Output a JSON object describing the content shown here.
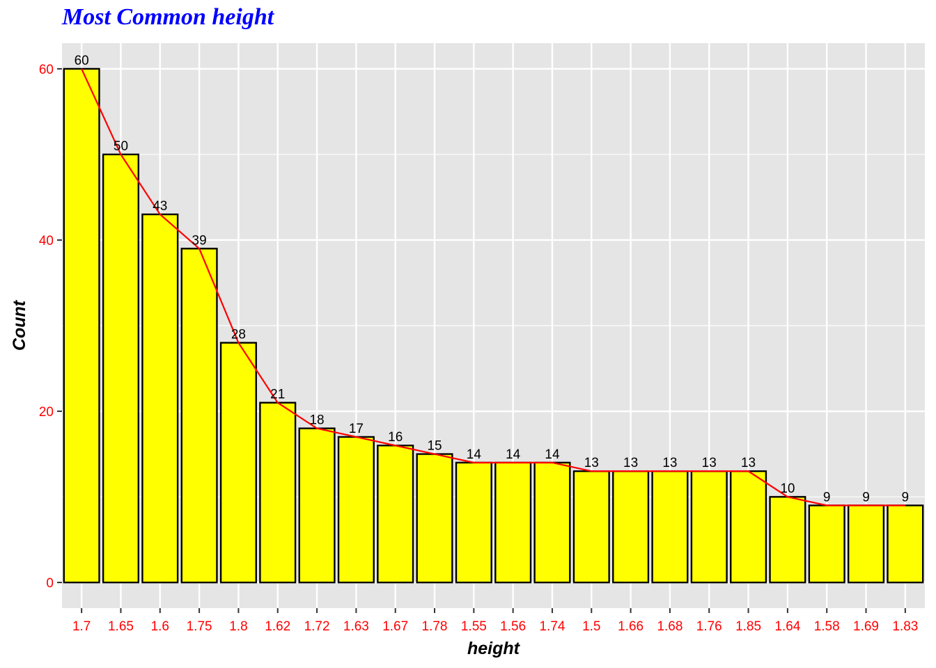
{
  "chart_data": {
    "type": "bar",
    "title": "Most Common height",
    "xlabel": "height",
    "ylabel": "Count",
    "categories": [
      "1.7",
      "1.65",
      "1.6",
      "1.75",
      "1.8",
      "1.62",
      "1.72",
      "1.63",
      "1.67",
      "1.78",
      "1.55",
      "1.56",
      "1.74",
      "1.5",
      "1.66",
      "1.68",
      "1.76",
      "1.85",
      "1.64",
      "1.58",
      "1.69",
      "1.83"
    ],
    "values": [
      60,
      50,
      43,
      39,
      28,
      21,
      18,
      17,
      16,
      15,
      14,
      14,
      14,
      13,
      13,
      13,
      13,
      13,
      10,
      9,
      9,
      9
    ],
    "yticks": [
      0,
      20,
      40,
      60
    ],
    "ylim": [
      -3,
      63
    ],
    "grid": true,
    "bar_fill": "#ffff00",
    "bar_stroke": "#000000",
    "line_color": "#ff0000",
    "tick_label_color": "#ff0000",
    "title_color": "#0000ff",
    "panel_background": "#e5e5e5"
  }
}
